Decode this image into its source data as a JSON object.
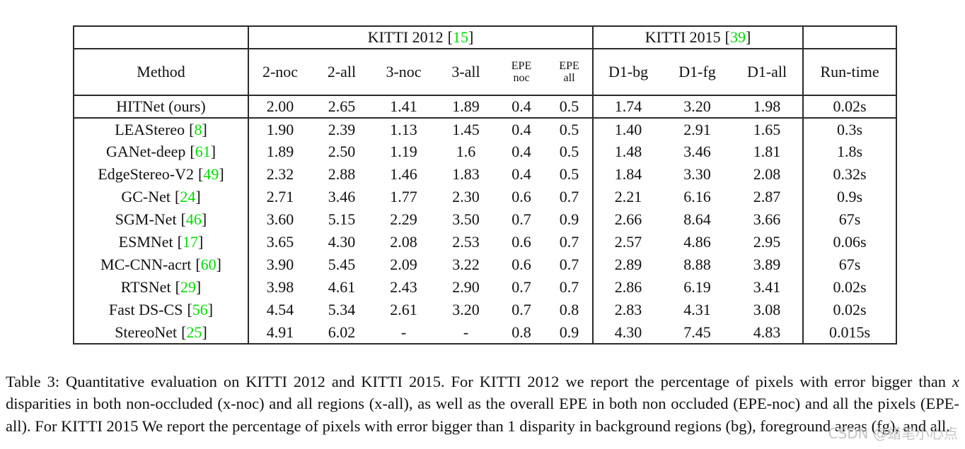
{
  "colors": {
    "citation_green": "#00dd00",
    "border": "#2b2b2b",
    "text": "#111111",
    "watermark_gray": "#c6c6c6"
  },
  "punct": {
    "open": "[",
    "close": "]"
  },
  "header": {
    "method_label": "Method",
    "runtime_label": "Run-time",
    "groups": [
      {
        "title": "KITTI 2012",
        "cite": "15"
      },
      {
        "title": "KITTI 2015",
        "cite": "39"
      }
    ],
    "kitti2012_cols": [
      "2-noc",
      "2-all",
      "3-noc",
      "3-all"
    ],
    "epe_cols": [
      {
        "top": "EPE",
        "bottom": "noc"
      },
      {
        "top": "EPE",
        "bottom": "all"
      }
    ],
    "kitti2015_cols": [
      "D1-bg",
      "D1-fg",
      "D1-all"
    ]
  },
  "rows": [
    {
      "method": "HITNet (ours)",
      "cite": null,
      "values": [
        "2.00",
        "2.65",
        "1.41",
        "1.89",
        "0.4",
        "0.5",
        "1.74",
        "3.20",
        "1.98",
        "0.02s"
      ]
    },
    {
      "method": "LEAStereo",
      "cite": "8",
      "values": [
        "1.90",
        "2.39",
        "1.13",
        "1.45",
        "0.4",
        "0.5",
        "1.40",
        "2.91",
        "1.65",
        "0.3s"
      ]
    },
    {
      "method": "GANet-deep",
      "cite": "61",
      "values": [
        "1.89",
        "2.50",
        "1.19",
        "1.6",
        "0.4",
        "0.5",
        "1.48",
        "3.46",
        "1.81",
        "1.8s"
      ]
    },
    {
      "method": "EdgeStereo-V2",
      "cite": "49",
      "values": [
        "2.32",
        "2.88",
        "1.46",
        "1.83",
        "0.4",
        "0.5",
        "1.84",
        "3.30",
        "2.08",
        "0.32s"
      ]
    },
    {
      "method": "GC-Net",
      "cite": "24",
      "values": [
        "2.71",
        "3.46",
        "1.77",
        "2.30",
        "0.6",
        "0.7",
        "2.21",
        "6.16",
        "2.87",
        "0.9s"
      ]
    },
    {
      "method": "SGM-Net",
      "cite": "46",
      "values": [
        "3.60",
        "5.15",
        "2.29",
        "3.50",
        "0.7",
        "0.9",
        "2.66",
        "8.64",
        "3.66",
        "67s"
      ]
    },
    {
      "method": "ESMNet",
      "cite": "17",
      "values": [
        "3.65",
        "4.30",
        "2.08",
        "2.53",
        "0.6",
        "0.7",
        "2.57",
        "4.86",
        "2.95",
        "0.06s"
      ]
    },
    {
      "method": "MC-CNN-acrt",
      "cite": "60",
      "values": [
        "3.90",
        "5.45",
        "2.09",
        "3.22",
        "0.6",
        "0.7",
        "2.89",
        "8.88",
        "3.89",
        "67s"
      ]
    },
    {
      "method": "RTSNet",
      "cite": "29",
      "values": [
        "3.98",
        "4.61",
        "2.43",
        "2.90",
        "0.7",
        "0.7",
        "2.86",
        "6.19",
        "3.41",
        "0.02s"
      ]
    },
    {
      "method": "Fast DS-CS",
      "cite": "56",
      "values": [
        "4.54",
        "5.34",
        "2.61",
        "3.20",
        "0.7",
        "0.8",
        "2.83",
        "4.31",
        "3.08",
        "0.02s"
      ]
    },
    {
      "method": "StereoNet",
      "cite": "25",
      "values": [
        "4.91",
        "6.02",
        "-",
        "-",
        "0.8",
        "0.9",
        "4.30",
        "7.45",
        "4.83",
        "0.015s"
      ]
    }
  ],
  "caption": {
    "seg1": "Table 3: Quantitative evaluation on KITTI 2012 and KITTI 2015. For KITTI 2012 we report the percentage of pixels with error bigger than ",
    "x": "x",
    "seg2": " disparities in both non-occluded (x-noc) and all regions (x-all), as well as the overall EPE in both non occluded (EPE-noc) and all the pixels (EPE-all). For KITTI 2015 We report the percentage of pixels with error bigger than 1 disparity in background regions (bg), foreground areas (fg), and all."
  },
  "watermark": "CSDN @蜡笔小心点"
}
